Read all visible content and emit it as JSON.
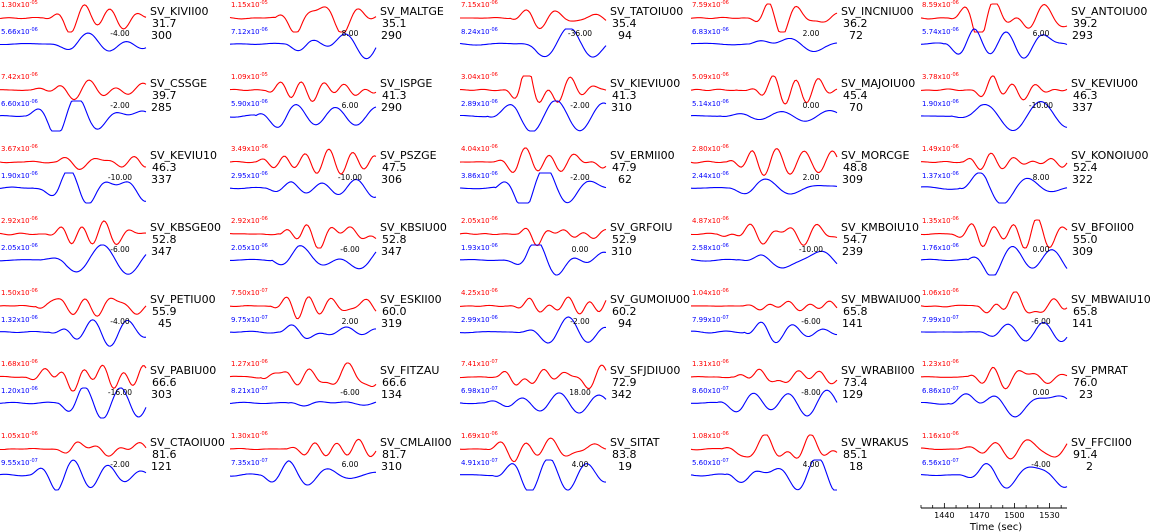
{
  "chart_data": {
    "type": "line",
    "layout": {
      "columns": 5,
      "rows": 7
    },
    "colors": {
      "observed": "#ff0000",
      "synthetic": "#0000ff",
      "text": "#000000"
    },
    "panels": [
      {
        "station": "SV_KIVII00",
        "distance": "31.7",
        "azimuth": "300",
        "obs_amp": "1.30x10",
        "obs_exp": "-05",
        "syn_amp": "5.66x10",
        "syn_exp": "-06",
        "shift": "-4.00"
      },
      {
        "station": "SV_MALTGE",
        "distance": "35.1",
        "azimuth": "290",
        "obs_amp": "1.15x10",
        "obs_exp": "-05",
        "syn_amp": "7.12x10",
        "syn_exp": "-06",
        "shift": "8.00"
      },
      {
        "station": "SV_TATOIU00",
        "distance": "35.4",
        "azimuth": "94",
        "obs_amp": "7.15x10",
        "obs_exp": "-06",
        "syn_amp": "8.24x10",
        "syn_exp": "-06",
        "shift": "-36.00"
      },
      {
        "station": "SV_INCNIU00",
        "distance": "36.2",
        "azimuth": "72",
        "obs_amp": "7.59x10",
        "obs_exp": "-06",
        "syn_amp": "6.83x10",
        "syn_exp": "-06",
        "shift": "2.00"
      },
      {
        "station": "SV_ANTOIU00",
        "distance": "39.2",
        "azimuth": "293",
        "obs_amp": "8.59x10",
        "obs_exp": "-06",
        "syn_amp": "5.74x10",
        "syn_exp": "-06",
        "shift": "6.00"
      },
      {
        "station": "SV_CSSGE",
        "distance": "39.7",
        "azimuth": "285",
        "obs_amp": "7.42x10",
        "obs_exp": "-06",
        "syn_amp": "6.60x10",
        "syn_exp": "-06",
        "shift": "-2.00"
      },
      {
        "station": "SV_ISPGE",
        "distance": "41.3",
        "azimuth": "290",
        "obs_amp": "1.09x10",
        "obs_exp": "-05",
        "syn_amp": "5.90x10",
        "syn_exp": "-06",
        "shift": "6.00"
      },
      {
        "station": "SV_KIEVIU00",
        "distance": "41.3",
        "azimuth": "310",
        "obs_amp": "3.04x10",
        "obs_exp": "-06",
        "syn_amp": "2.89x10",
        "syn_exp": "-06",
        "shift": "-2.00"
      },
      {
        "station": "SV_MAJOIU00",
        "distance": "45.4",
        "azimuth": "70",
        "obs_amp": "5.09x10",
        "obs_exp": "-06",
        "syn_amp": "5.14x10",
        "syn_exp": "-06",
        "shift": "0.00"
      },
      {
        "station": "SV_KEVIU00",
        "distance": "46.3",
        "azimuth": "337",
        "obs_amp": "3.78x10",
        "obs_exp": "-06",
        "syn_amp": "1.90x10",
        "syn_exp": "-06",
        "shift": "-10.00"
      },
      {
        "station": "SV_KEVIU10",
        "distance": "46.3",
        "azimuth": "337",
        "obs_amp": "3.67x10",
        "obs_exp": "-06",
        "syn_amp": "1.90x10",
        "syn_exp": "-06",
        "shift": "-10.00"
      },
      {
        "station": "SV_PSZGE",
        "distance": "47.5",
        "azimuth": "306",
        "obs_amp": "3.49x10",
        "obs_exp": "-06",
        "syn_amp": "2.95x10",
        "syn_exp": "-06",
        "shift": "-10.00"
      },
      {
        "station": "SV_ERMII00",
        "distance": "47.9",
        "azimuth": "62",
        "obs_amp": "4.04x10",
        "obs_exp": "-06",
        "syn_amp": "3.86x10",
        "syn_exp": "-06",
        "shift": "-2.00"
      },
      {
        "station": "SV_MORCGE",
        "distance": "48.8",
        "azimuth": "309",
        "obs_amp": "2.80x10",
        "obs_exp": "-06",
        "syn_amp": "2.44x10",
        "syn_exp": "-06",
        "shift": "2.00"
      },
      {
        "station": "SV_KONOIU00",
        "distance": "52.4",
        "azimuth": "322",
        "obs_amp": "1.49x10",
        "obs_exp": "-06",
        "syn_amp": "1.37x10",
        "syn_exp": "-06",
        "shift": "8.00"
      },
      {
        "station": "SV_KBSGE00",
        "distance": "52.8",
        "azimuth": "347",
        "obs_amp": "2.92x10",
        "obs_exp": "-06",
        "syn_amp": "2.05x10",
        "syn_exp": "-06",
        "shift": "-6.00"
      },
      {
        "station": "SV_KBSIU00",
        "distance": "52.8",
        "azimuth": "347",
        "obs_amp": "2.92x10",
        "obs_exp": "-06",
        "syn_amp": "2.05x10",
        "syn_exp": "-06",
        "shift": "-6.00"
      },
      {
        "station": "SV_GRFOIU",
        "distance": "52.9",
        "azimuth": "310",
        "obs_amp": "2.05x10",
        "obs_exp": "-06",
        "syn_amp": "1.93x10",
        "syn_exp": "-06",
        "shift": "0.00"
      },
      {
        "station": "SV_KMBOIU10",
        "distance": "54.7",
        "azimuth": "239",
        "obs_amp": "4.87x10",
        "obs_exp": "-06",
        "syn_amp": "2.58x10",
        "syn_exp": "-06",
        "shift": "-10.00"
      },
      {
        "station": "SV_BFOII00",
        "distance": "55.0",
        "azimuth": "309",
        "obs_amp": "1.35x10",
        "obs_exp": "-06",
        "syn_amp": "1.76x10",
        "syn_exp": "-06",
        "shift": "0.00"
      },
      {
        "station": "SV_PETIU00",
        "distance": "55.9",
        "azimuth": "45",
        "obs_amp": "1.50x10",
        "obs_exp": "-06",
        "syn_amp": "1.32x10",
        "syn_exp": "-06",
        "shift": "-4.00"
      },
      {
        "station": "SV_ESKII00",
        "distance": "60.0",
        "azimuth": "319",
        "obs_amp": "7.50x10",
        "obs_exp": "-07",
        "syn_amp": "9.75x10",
        "syn_exp": "-07",
        "shift": "2.00"
      },
      {
        "station": "SV_GUMOIU00",
        "distance": "60.2",
        "azimuth": "94",
        "obs_amp": "4.25x10",
        "obs_exp": "-06",
        "syn_amp": "2.99x10",
        "syn_exp": "-06",
        "shift": "-2.00"
      },
      {
        "station": "SV_MBWAIU00",
        "distance": "65.8",
        "azimuth": "141",
        "obs_amp": "1.04x10",
        "obs_exp": "-06",
        "syn_amp": "7.99x10",
        "syn_exp": "-07",
        "shift": "-6.00"
      },
      {
        "station": "SV_MBWAIU10",
        "distance": "65.8",
        "azimuth": "141",
        "obs_amp": "1.06x10",
        "obs_exp": "-06",
        "syn_amp": "7.99x10",
        "syn_exp": "-07",
        "shift": "-6.00"
      },
      {
        "station": "SV_PABIU00",
        "distance": "66.6",
        "azimuth": "303",
        "obs_amp": "1.68x10",
        "obs_exp": "-06",
        "syn_amp": "1.20x10",
        "syn_exp": "-06",
        "shift": "-16.00"
      },
      {
        "station": "SV_FITZAU",
        "distance": "66.6",
        "azimuth": "134",
        "obs_amp": "1.27x10",
        "obs_exp": "-06",
        "syn_amp": "8.21x10",
        "syn_exp": "-07",
        "shift": "-6.00"
      },
      {
        "station": "SV_SFJDIU00",
        "distance": "72.9",
        "azimuth": "342",
        "obs_amp": "7.41x10",
        "obs_exp": "-07",
        "syn_amp": "6.98x10",
        "syn_exp": "-07",
        "shift": "18.00"
      },
      {
        "station": "SV_WRABII00",
        "distance": "73.4",
        "azimuth": "129",
        "obs_amp": "1.31x10",
        "obs_exp": "-06",
        "syn_amp": "8.60x10",
        "syn_exp": "-07",
        "shift": "-8.00"
      },
      {
        "station": "SV_PMRAT",
        "distance": "76.0",
        "azimuth": "23",
        "obs_amp": "1.23x10",
        "obs_exp": "-06",
        "syn_amp": "6.86x10",
        "syn_exp": "-07",
        "shift": "0.00"
      },
      {
        "station": "SV_CTAOIU00",
        "distance": "81.6",
        "azimuth": "121",
        "obs_amp": "1.05x10",
        "obs_exp": "-06",
        "syn_amp": "9.55x10",
        "syn_exp": "-07",
        "shift": "-2.00"
      },
      {
        "station": "SV_CMLAII00",
        "distance": "81.7",
        "azimuth": "310",
        "obs_amp": "1.30x10",
        "obs_exp": "-06",
        "syn_amp": "7.35x10",
        "syn_exp": "-07",
        "shift": "6.00"
      },
      {
        "station": "SV_SITAT",
        "distance": "83.8",
        "azimuth": "19",
        "obs_amp": "1.69x10",
        "obs_exp": "-06",
        "syn_amp": "4.91x10",
        "syn_exp": "-07",
        "shift": "4.00"
      },
      {
        "station": "SV_WRAKUS",
        "distance": "85.1",
        "azimuth": "18",
        "obs_amp": "1.08x10",
        "obs_exp": "-06",
        "syn_amp": "5.60x10",
        "syn_exp": "-07",
        "shift": "4.00"
      },
      {
        "station": "SV_FFCII00",
        "distance": "91.4",
        "azimuth": "2",
        "obs_amp": "1.16x10",
        "obs_exp": "-06",
        "syn_amp": "6.56x10",
        "syn_exp": "-07",
        "shift": "-4.00"
      }
    ],
    "time_axis": {
      "label": "Time (sec)",
      "range": [
        1420,
        1545
      ],
      "ticks": [
        1440,
        1470,
        1500,
        1530
      ]
    }
  }
}
